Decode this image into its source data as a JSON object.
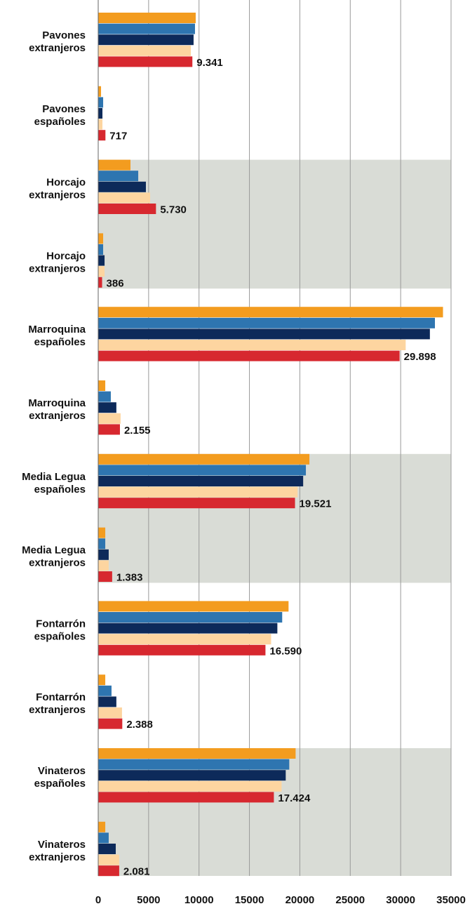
{
  "chart_data": {
    "type": "bar",
    "orientation": "horizontal",
    "categories": [
      "Pavones\nextranjeros",
      "Pavones\nespañoles",
      "Horcajo\nextranjeros",
      "Horcajo\nextranjeros",
      "Marroquina\nespañoles",
      "Marroquina\nextranjeros",
      "Media Legua\nespañoles",
      "Media Legua\nextranjeros",
      "Fontarrón\nespañoles",
      "Fontarrón\nextranjeros",
      "Vinateros\nespañoles",
      "Vinateros\nextranjeros"
    ],
    "series": [
      {
        "color": "#f39c1f",
        "values": [
          9670,
          280,
          3200,
          490,
          34200,
          700,
          20950,
          700,
          18880,
          700,
          19580,
          700
        ]
      },
      {
        "color": "#2e75b0",
        "values": [
          9600,
          490,
          3970,
          490,
          33400,
          1250,
          20600,
          700,
          18250,
          1320,
          18950,
          1040
        ]
      },
      {
        "color": "#0d2a5a",
        "values": [
          9460,
          420,
          4730,
          630,
          32900,
          1800,
          20330,
          1040,
          17770,
          1800,
          18600,
          1740
        ]
      },
      {
        "color": "#fdd5a0",
        "values": [
          9190,
          420,
          5150,
          630,
          30500,
          2220,
          19780,
          1040,
          17150,
          2360,
          18190,
          2080
        ]
      },
      {
        "color": "#d7282f",
        "values": [
          9341,
          717,
          5730,
          386,
          29898,
          2155,
          19521,
          1383,
          16590,
          2388,
          17424,
          2081
        ],
        "value_labels": [
          "9.341",
          "717",
          "5.730",
          "386",
          "29.898",
          "2.155",
          "19.521",
          "1.383",
          "16.590",
          "2.388",
          "17.424",
          "2.081"
        ]
      }
    ],
    "xlim": [
      0,
      35000
    ],
    "xticks": [
      0,
      5000,
      10000,
      15000,
      20000,
      25000,
      30000,
      35000
    ],
    "grid": true
  }
}
